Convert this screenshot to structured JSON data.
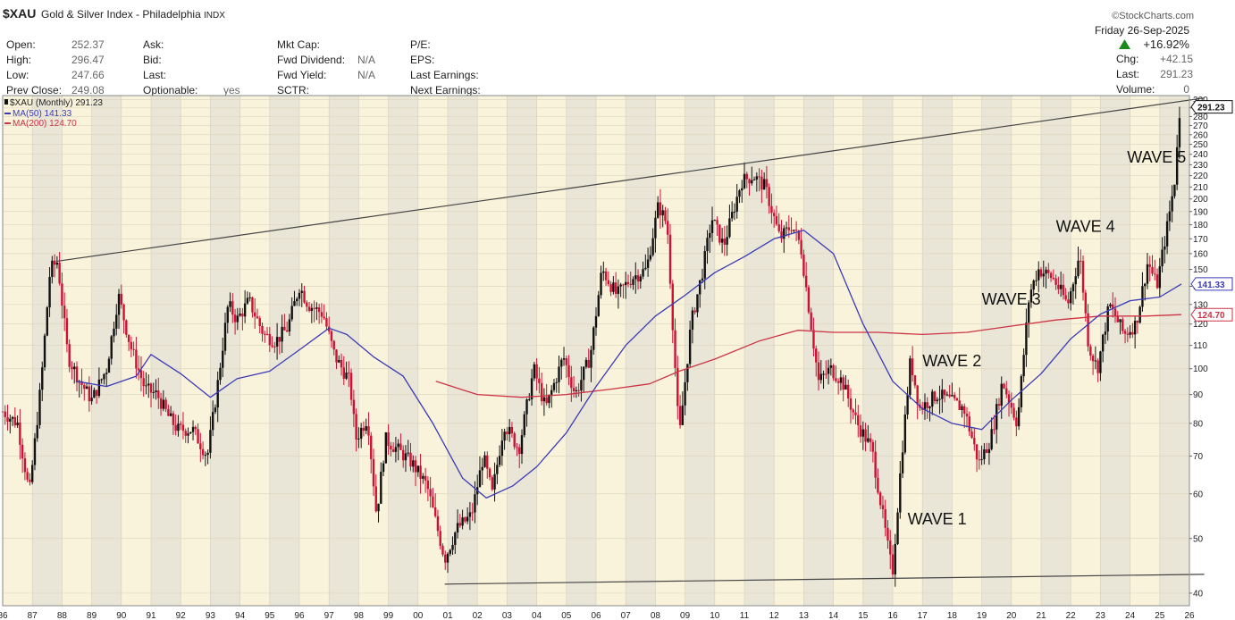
{
  "header": {
    "symbol": "$XAU",
    "name": "Gold & Silver Index - Philadelphia",
    "exchange": "INDX",
    "brand": "©StockCharts.com"
  },
  "quote": {
    "col1": [
      {
        "label": "Open:",
        "value": "252.37"
      },
      {
        "label": "High:",
        "value": "296.47"
      },
      {
        "label": "Low:",
        "value": "247.66"
      },
      {
        "label": "Prev Close:",
        "value": "249.08"
      }
    ],
    "col2": [
      {
        "label": "Ask:",
        "value": ""
      },
      {
        "label": "Bid:",
        "value": ""
      },
      {
        "label": "Last:",
        "value": ""
      },
      {
        "label": "Optionable:",
        "value": "yes"
      }
    ],
    "col3": [
      {
        "label": "Mkt Cap:",
        "value": ""
      },
      {
        "label": "Fwd Dividend:",
        "value": "N/A"
      },
      {
        "label": "Fwd Yield:",
        "value": "N/A"
      },
      {
        "label": "SCTR:",
        "value": ""
      }
    ],
    "col4": [
      {
        "label": "P/E:",
        "value": ""
      },
      {
        "label": "EPS:",
        "value": ""
      },
      {
        "label": "Last Earnings:",
        "value": ""
      },
      {
        "label": "Next Earnings:",
        "value": ""
      }
    ],
    "date": "Friday  26-Sep-2025",
    "change_pct": "+16.92%",
    "chg_label": "Chg:",
    "chg_value": "+42.15",
    "last_label": "Last:",
    "last_value": "291.23",
    "volume_label": "Volume:",
    "volume_value": "0"
  },
  "legend": {
    "main": "$XAU (Monthly) 291.23",
    "ma50": "MA(50) 141.33",
    "ma200": "MA(200) 124.70"
  },
  "colors": {
    "background": "#faf3dc",
    "band": "#e9e6d7",
    "up_bar": "#111111",
    "down_bar": "#cc1133",
    "ma50": "#3a3ab8",
    "ma200": "#cc3344",
    "trendline": "#444444"
  },
  "chart_data": {
    "type": "line",
    "scale": "log",
    "ylim": [
      38,
      305
    ],
    "xlim": [
      1986.0,
      2026.0
    ],
    "x_ticks": [
      "86",
      "87",
      "88",
      "89",
      "90",
      "91",
      "92",
      "93",
      "94",
      "95",
      "96",
      "97",
      "98",
      "99",
      "00",
      "01",
      "02",
      "03",
      "04",
      "05",
      "06",
      "07",
      "08",
      "09",
      "10",
      "11",
      "12",
      "13",
      "14",
      "15",
      "16",
      "17",
      "18",
      "19",
      "20",
      "21",
      "22",
      "23",
      "24",
      "25",
      "26"
    ],
    "y_ticks": [
      300,
      290,
      280,
      270,
      260,
      250,
      240,
      230,
      220,
      210,
      200,
      190,
      180,
      170,
      160,
      150,
      140,
      130,
      120,
      110,
      100,
      90,
      80,
      70,
      60,
      50,
      40
    ],
    "series": [
      {
        "name": "$XAU (Monthly) 291.23",
        "type": "price",
        "points": [
          [
            1986.0,
            84
          ],
          [
            1986.5,
            80
          ],
          [
            1986.9,
            60
          ],
          [
            1987.3,
            95
          ],
          [
            1987.6,
            150
          ],
          [
            1987.85,
            155
          ],
          [
            1988.2,
            105
          ],
          [
            1988.6,
            95
          ],
          [
            1989.0,
            88
          ],
          [
            1989.5,
            100
          ],
          [
            1989.9,
            135
          ],
          [
            1990.3,
            110
          ],
          [
            1990.8,
            92
          ],
          [
            1991.2,
            90
          ],
          [
            1991.6,
            82
          ],
          [
            1991.9,
            78
          ],
          [
            1992.4,
            78
          ],
          [
            1992.9,
            70
          ],
          [
            1993.2,
            90
          ],
          [
            1993.6,
            130
          ],
          [
            1993.9,
            122
          ],
          [
            1994.3,
            132
          ],
          [
            1994.8,
            115
          ],
          [
            1995.2,
            112
          ],
          [
            1995.6,
            118
          ],
          [
            1996.0,
            140
          ],
          [
            1996.3,
            130
          ],
          [
            1996.8,
            125
          ],
          [
            1997.2,
            105
          ],
          [
            1997.7,
            95
          ],
          [
            1997.9,
            75
          ],
          [
            1998.3,
            82
          ],
          [
            1998.6,
            55
          ],
          [
            1998.9,
            75
          ],
          [
            1999.3,
            72
          ],
          [
            1999.8,
            68
          ],
          [
            2000.3,
            62
          ],
          [
            2000.9,
            46
          ],
          [
            2001.3,
            52
          ],
          [
            2001.8,
            55
          ],
          [
            2002.2,
            70
          ],
          [
            2002.5,
            60
          ],
          [
            2002.9,
            80
          ],
          [
            2003.4,
            72
          ],
          [
            2003.9,
            100
          ],
          [
            2004.3,
            85
          ],
          [
            2004.9,
            105
          ],
          [
            2005.3,
            90
          ],
          [
            2005.8,
            105
          ],
          [
            2006.2,
            150
          ],
          [
            2006.7,
            135
          ],
          [
            2007.2,
            145
          ],
          [
            2007.7,
            150
          ],
          [
            2008.1,
            195
          ],
          [
            2008.4,
            180
          ],
          [
            2008.8,
            75
          ],
          [
            2009.2,
            120
          ],
          [
            2009.6,
            150
          ],
          [
            2009.9,
            185
          ],
          [
            2010.3,
            165
          ],
          [
            2010.9,
            215
          ],
          [
            2011.3,
            220
          ],
          [
            2011.7,
            210
          ],
          [
            2012.2,
            170
          ],
          [
            2012.6,
            180
          ],
          [
            2012.9,
            165
          ],
          [
            2013.2,
            125
          ],
          [
            2013.5,
            95
          ],
          [
            2013.9,
            100
          ],
          [
            2014.3,
            95
          ],
          [
            2014.8,
            80
          ],
          [
            2015.3,
            72
          ],
          [
            2015.9,
            46
          ],
          [
            2016.0,
            44
          ],
          [
            2016.3,
            70
          ],
          [
            2016.6,
            104
          ],
          [
            2016.9,
            85
          ],
          [
            2017.5,
            90
          ],
          [
            2017.9,
            88
          ],
          [
            2018.4,
            85
          ],
          [
            2018.9,
            68
          ],
          [
            2019.3,
            75
          ],
          [
            2019.7,
            95
          ],
          [
            2020.2,
            80
          ],
          [
            2020.6,
            135
          ],
          [
            2020.9,
            150
          ],
          [
            2021.4,
            145
          ],
          [
            2021.9,
            130
          ],
          [
            2022.3,
            160
          ],
          [
            2022.6,
            110
          ],
          [
            2022.9,
            100
          ],
          [
            2023.3,
            130
          ],
          [
            2023.8,
            115
          ],
          [
            2024.2,
            120
          ],
          [
            2024.6,
            155
          ],
          [
            2024.9,
            140
          ],
          [
            2025.3,
            185
          ],
          [
            2025.5,
            215
          ],
          [
            2025.6,
            260
          ],
          [
            2025.73,
            291.23
          ]
        ]
      },
      {
        "name": "MA(50) 141.33",
        "points": [
          [
            1988.5,
            95
          ],
          [
            1989.5,
            93
          ],
          [
            1990.5,
            97
          ],
          [
            1991.0,
            106
          ],
          [
            1992.0,
            98
          ],
          [
            1993.0,
            89
          ],
          [
            1993.9,
            96
          ],
          [
            1995.0,
            99
          ],
          [
            1996.0,
            108
          ],
          [
            1997.0,
            118
          ],
          [
            1997.6,
            115
          ],
          [
            1998.5,
            105
          ],
          [
            1999.5,
            97
          ],
          [
            2000.5,
            80
          ],
          [
            2001.5,
            64
          ],
          [
            2002.3,
            59
          ],
          [
            2003.2,
            62
          ],
          [
            2004.0,
            67
          ],
          [
            2005.0,
            77
          ],
          [
            2006.0,
            93
          ],
          [
            2007.0,
            110
          ],
          [
            2008.0,
            124
          ],
          [
            2009.0,
            135
          ],
          [
            2010.0,
            148
          ],
          [
            2011.0,
            158
          ],
          [
            2012.0,
            170
          ],
          [
            2013.0,
            176
          ],
          [
            2014.0,
            160
          ],
          [
            2015.0,
            120
          ],
          [
            2016.0,
            95
          ],
          [
            2017.0,
            85
          ],
          [
            2018.0,
            80
          ],
          [
            2019.0,
            78
          ],
          [
            2020.0,
            88
          ],
          [
            2021.0,
            98
          ],
          [
            2022.0,
            113
          ],
          [
            2023.0,
            125
          ],
          [
            2024.0,
            132
          ],
          [
            2025.0,
            134
          ],
          [
            2025.73,
            141.33
          ]
        ]
      },
      {
        "name": "MA(200) 124.70",
        "points": [
          [
            2000.6,
            95
          ],
          [
            2002.0,
            90
          ],
          [
            2003.5,
            89
          ],
          [
            2005.0,
            90
          ],
          [
            2006.5,
            92
          ],
          [
            2007.8,
            94
          ],
          [
            2008.8,
            99
          ],
          [
            2010.0,
            104
          ],
          [
            2011.5,
            112
          ],
          [
            2012.8,
            117
          ],
          [
            2014.0,
            116
          ],
          [
            2015.5,
            116
          ],
          [
            2017.0,
            115
          ],
          [
            2018.5,
            116
          ],
          [
            2020.0,
            119
          ],
          [
            2021.5,
            122
          ],
          [
            2023.0,
            124
          ],
          [
            2024.5,
            124
          ],
          [
            2025.73,
            124.7
          ]
        ]
      },
      {
        "name": "",
        "type": "trendline",
        "points": [
          [
            1987.8,
            155
          ],
          [
            2026.5,
            302
          ]
        ]
      },
      {
        "name": "",
        "type": "trendline",
        "points": [
          [
            2000.9,
            41.5
          ],
          [
            2026.5,
            43.2
          ]
        ]
      }
    ],
    "annotations": [
      {
        "text": "WAVE 1",
        "x": 2016.5,
        "y": 53
      },
      {
        "text": "WAVE 2",
        "x": 2017.0,
        "y": 101
      },
      {
        "text": "WAVE 3",
        "x": 2019.0,
        "y": 130
      },
      {
        "text": "WAVE 4",
        "x": 2021.5,
        "y": 175
      },
      {
        "text": "WAVE 5",
        "x": 2023.9,
        "y": 232
      }
    ],
    "price_labels": [
      {
        "text": "291.23",
        "y": 291.23,
        "color": "#111111"
      },
      {
        "text": "141.33",
        "y": 141.33,
        "color": "#3a3ab8"
      },
      {
        "text": "124.70",
        "y": 124.7,
        "color": "#cc3344"
      }
    ],
    "grid": true
  }
}
